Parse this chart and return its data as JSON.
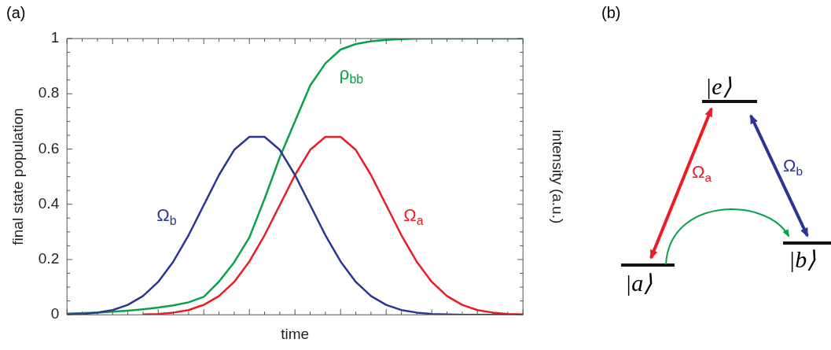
{
  "chart_data": {
    "type": "line",
    "xlabel": "time",
    "ylabel": "final state population",
    "y2label": "intensity (a.u.)",
    "categories": [
      null,
      null,
      null,
      null,
      null,
      null,
      null,
      null,
      null,
      null,
      null,
      null,
      null,
      null,
      null,
      null,
      null,
      null,
      null,
      null,
      null,
      null,
      null,
      null,
      null,
      null,
      null,
      null,
      null,
      null,
      null
    ],
    "series": [
      {
        "name": "Ω$_{b}$",
        "color": "#2b3594",
        "values": [
          0.001,
          0.003,
          0.008,
          0.017,
          0.036,
          0.068,
          0.119,
          0.193,
          0.288,
          0.397,
          0.506,
          0.597,
          0.644,
          0.644,
          0.597,
          0.506,
          0.397,
          0.288,
          0.193,
          0.119,
          0.068,
          0.036,
          0.017,
          0.008,
          0.003,
          0.001,
          0,
          0,
          0,
          0,
          0
        ]
      },
      {
        "name": "ρ$_{bb}$",
        "color": "#0ba14b",
        "values": [
          0.004,
          0.006,
          0.008,
          0.011,
          0.015,
          0.02,
          0.026,
          0.034,
          0.045,
          0.065,
          0.12,
          0.19,
          0.28,
          0.42,
          0.57,
          0.7,
          0.83,
          0.91,
          0.96,
          0.98,
          0.99,
          0.995,
          0.998,
          1,
          1,
          1,
          1,
          1,
          1,
          1,
          1
        ]
      },
      {
        "name": "Ω$_{a}$",
        "color": "#ec1c24",
        "values": [
          null,
          null,
          null,
          null,
          null,
          0.001,
          0.003,
          0.008,
          0.017,
          0.036,
          0.068,
          0.119,
          0.193,
          0.288,
          0.397,
          0.506,
          0.597,
          0.644,
          0.644,
          0.597,
          0.506,
          0.397,
          0.288,
          0.193,
          0.119,
          0.068,
          0.036,
          0.017,
          0.008,
          0.003,
          0.001
        ]
      }
    ],
    "ylim": [
      0,
      1
    ],
    "yticks": [
      0,
      0.2,
      0.4,
      0.6,
      0.8,
      1
    ],
    "tick_labels": "y",
    "grid": false,
    "legend": false,
    "marker": "none",
    "line_style": "solid",
    "annotations": [
      "(a)",
      "(b)",
      "|e⟩",
      "|a⟩",
      "|b⟩",
      "Ω$_{a}$",
      "Ω$_{b}$"
    ]
  }
}
